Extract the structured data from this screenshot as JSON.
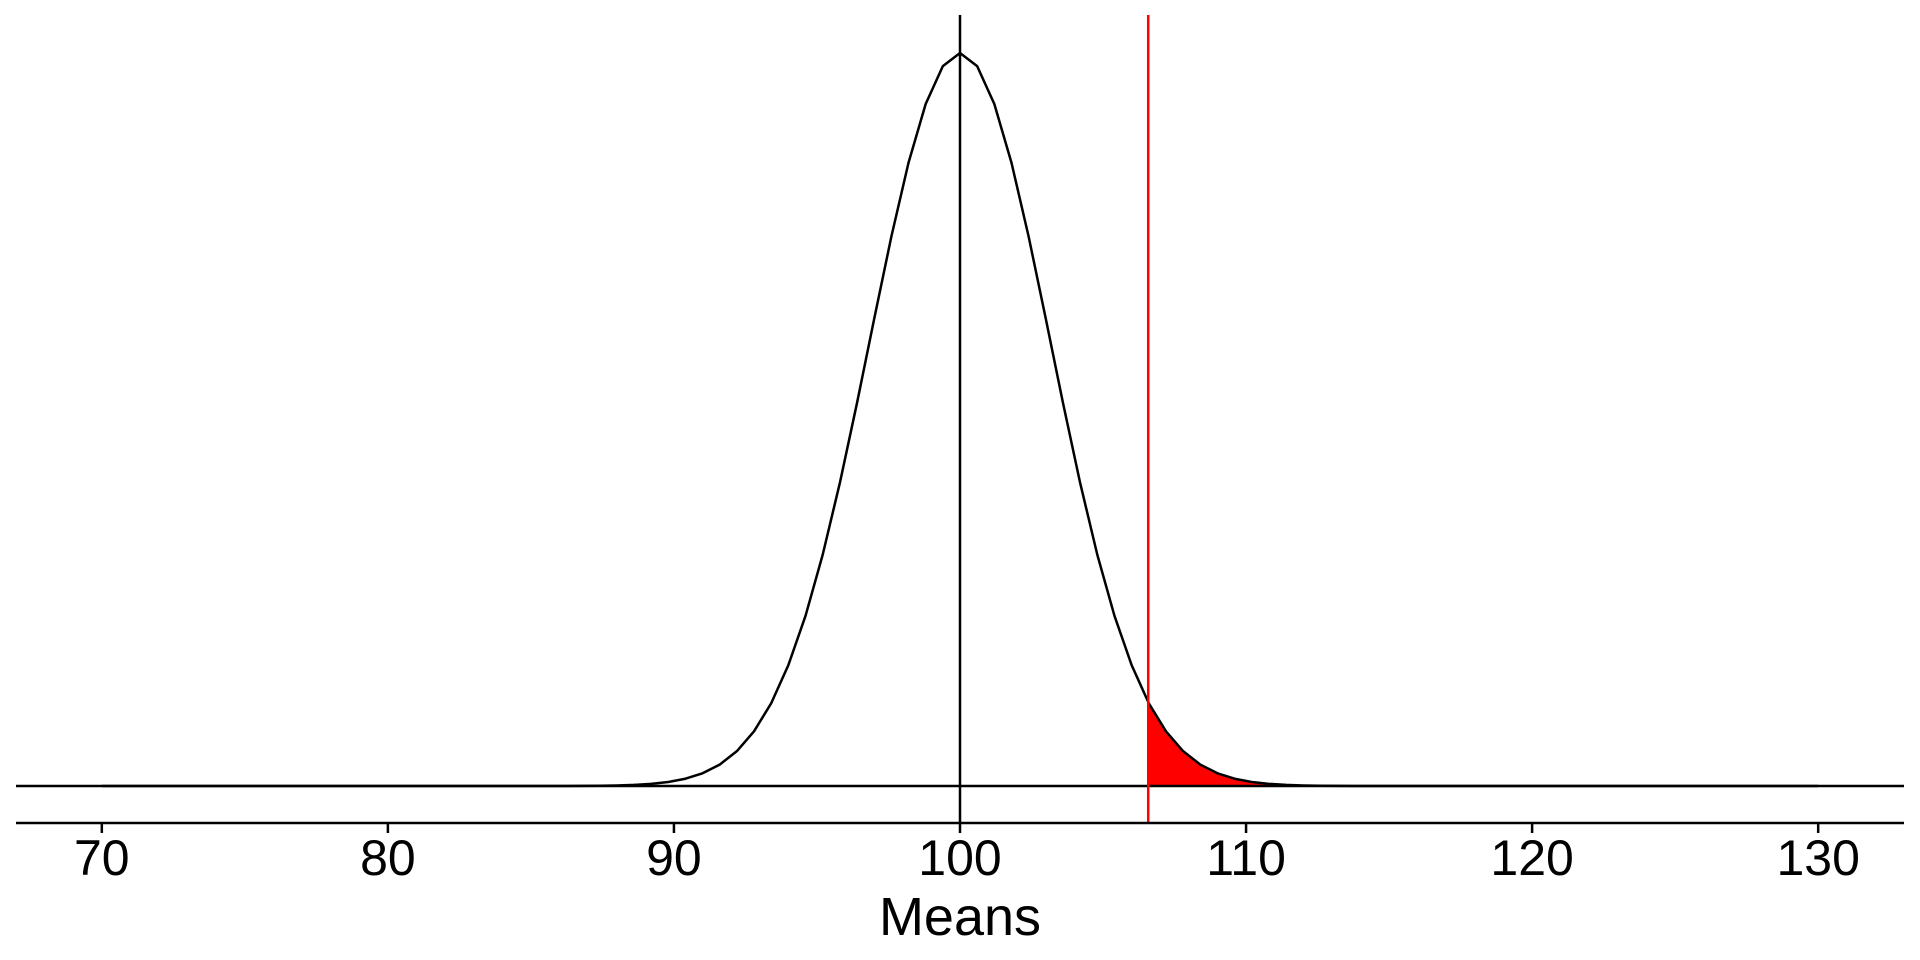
{
  "chart_data": {
    "type": "line",
    "title": "",
    "xlabel": "Means",
    "ylabel": "",
    "xlim": [
      67,
      133
    ],
    "x_ticks": [
      70,
      80,
      90,
      100,
      110,
      120,
      130
    ],
    "x_tick_labels": [
      "70",
      "80",
      "90",
      "100",
      "110",
      "120",
      "130"
    ],
    "grid": false,
    "legend": "none",
    "distribution": {
      "kind": "normal",
      "mean": 100,
      "sd": 3.16,
      "x_range": [
        70,
        130
      ],
      "x_step": 0.6
    },
    "reference_lines": [
      {
        "x": 100,
        "color": "#000000"
      },
      {
        "x": 106.58,
        "color": "#ff0000"
      }
    ],
    "shaded_region": {
      "x_from": 106.58,
      "x_to": 130,
      "color": "#ff0000"
    },
    "colors": {
      "curve": "#000000",
      "baseline": "#000000",
      "highlight": "#ff0000"
    }
  }
}
